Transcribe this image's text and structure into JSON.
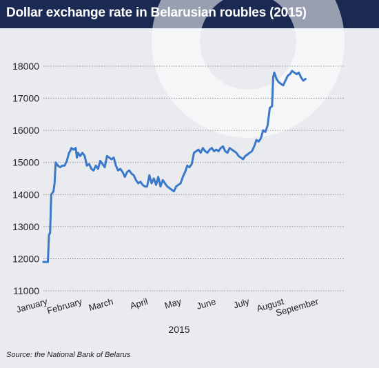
{
  "header": {
    "title": "Dollar exchange rate in Belarusian roubles (2015)"
  },
  "source": "Source: the National Bank of Belarus",
  "colors": {
    "header_bg": "#1b2a52",
    "line": "#3a78c9",
    "background": "#e9ebef",
    "grid": "#7a7a7a"
  },
  "chart_data": {
    "type": "line",
    "title": "Dollar exchange rate in Belarusian roubles (2015)",
    "xlabel": "2015",
    "ylabel": "",
    "ylim": [
      11000,
      18000
    ],
    "yticks": [
      11000,
      12000,
      13000,
      14000,
      15000,
      16000,
      17000,
      18000
    ],
    "grid": "horizontal dotted",
    "xlim": [
      1,
      271
    ],
    "month_ticks": [
      {
        "label": "January",
        "day": 1
      },
      {
        "label": "February",
        "day": 32
      },
      {
        "label": "March",
        "day": 60
      },
      {
        "label": "April",
        "day": 91
      },
      {
        "label": "May",
        "day": 121
      },
      {
        "label": "June",
        "day": 152
      },
      {
        "label": "July",
        "day": 182
      },
      {
        "label": "August",
        "day": 213
      },
      {
        "label": "September",
        "day": 244
      }
    ],
    "series": [
      {
        "points": [
          [
            1,
            11900
          ],
          [
            5,
            11900
          ],
          [
            6,
            12750
          ],
          [
            7,
            12800
          ],
          [
            8,
            14000
          ],
          [
            9,
            14050
          ],
          [
            10,
            14100
          ],
          [
            11,
            14350
          ],
          [
            12,
            15000
          ],
          [
            13,
            14950
          ],
          [
            14,
            14900
          ],
          [
            16,
            14850
          ],
          [
            18,
            14900
          ],
          [
            20,
            14900
          ],
          [
            22,
            15050
          ],
          [
            24,
            15300
          ],
          [
            25,
            15350
          ],
          [
            26,
            15450
          ],
          [
            28,
            15400
          ],
          [
            30,
            15450
          ],
          [
            31,
            15150
          ],
          [
            32,
            15300
          ],
          [
            34,
            15200
          ],
          [
            36,
            15300
          ],
          [
            38,
            15200
          ],
          [
            40,
            14900
          ],
          [
            42,
            14950
          ],
          [
            44,
            14800
          ],
          [
            46,
            14750
          ],
          [
            48,
            14900
          ],
          [
            50,
            14800
          ],
          [
            52,
            15050
          ],
          [
            54,
            14950
          ],
          [
            56,
            14850
          ],
          [
            58,
            15200
          ],
          [
            60,
            15150
          ],
          [
            62,
            15100
          ],
          [
            64,
            15150
          ],
          [
            66,
            14900
          ],
          [
            68,
            14750
          ],
          [
            70,
            14800
          ],
          [
            72,
            14700
          ],
          [
            74,
            14550
          ],
          [
            76,
            14700
          ],
          [
            78,
            14750
          ],
          [
            80,
            14650
          ],
          [
            82,
            14600
          ],
          [
            84,
            14450
          ],
          [
            86,
            14350
          ],
          [
            88,
            14400
          ],
          [
            90,
            14300
          ],
          [
            92,
            14250
          ],
          [
            94,
            14250
          ],
          [
            96,
            14600
          ],
          [
            98,
            14350
          ],
          [
            100,
            14500
          ],
          [
            102,
            14300
          ],
          [
            104,
            14550
          ],
          [
            106,
            14250
          ],
          [
            108,
            14450
          ],
          [
            110,
            14350
          ],
          [
            112,
            14250
          ],
          [
            114,
            14200
          ],
          [
            116,
            14150
          ],
          [
            118,
            14100
          ],
          [
            120,
            14250
          ],
          [
            122,
            14300
          ],
          [
            124,
            14350
          ],
          [
            126,
            14550
          ],
          [
            128,
            14700
          ],
          [
            130,
            14900
          ],
          [
            132,
            14850
          ],
          [
            134,
            14950
          ],
          [
            136,
            15300
          ],
          [
            138,
            15350
          ],
          [
            140,
            15400
          ],
          [
            142,
            15300
          ],
          [
            144,
            15450
          ],
          [
            146,
            15350
          ],
          [
            148,
            15300
          ],
          [
            150,
            15400
          ],
          [
            152,
            15450
          ],
          [
            154,
            15350
          ],
          [
            156,
            15400
          ],
          [
            158,
            15350
          ],
          [
            160,
            15450
          ],
          [
            162,
            15500
          ],
          [
            164,
            15350
          ],
          [
            166,
            15300
          ],
          [
            168,
            15450
          ],
          [
            170,
            15400
          ],
          [
            172,
            15350
          ],
          [
            174,
            15300
          ],
          [
            176,
            15200
          ],
          [
            178,
            15150
          ],
          [
            180,
            15100
          ],
          [
            182,
            15200
          ],
          [
            184,
            15250
          ],
          [
            186,
            15300
          ],
          [
            188,
            15350
          ],
          [
            190,
            15500
          ],
          [
            192,
            15700
          ],
          [
            194,
            15650
          ],
          [
            196,
            15750
          ],
          [
            198,
            16000
          ],
          [
            200,
            15950
          ],
          [
            202,
            16150
          ],
          [
            204,
            16700
          ],
          [
            206,
            16750
          ],
          [
            207,
            17650
          ],
          [
            208,
            17800
          ],
          [
            210,
            17600
          ],
          [
            212,
            17500
          ],
          [
            214,
            17450
          ],
          [
            216,
            17400
          ],
          [
            218,
            17550
          ],
          [
            220,
            17700
          ],
          [
            222,
            17750
          ],
          [
            224,
            17850
          ],
          [
            226,
            17800
          ],
          [
            228,
            17750
          ],
          [
            230,
            17800
          ],
          [
            232,
            17650
          ],
          [
            234,
            17550
          ],
          [
            236,
            17600
          ]
        ]
      }
    ]
  }
}
